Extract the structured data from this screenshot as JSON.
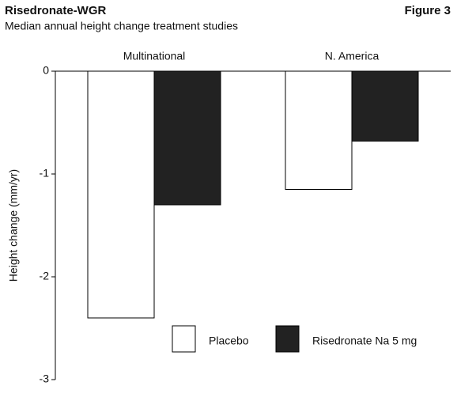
{
  "chart_data": {
    "type": "bar",
    "title": "Risedronate-WGR",
    "figure_label": "Figure 3",
    "subtitle": "Median annual height change treatment studies",
    "y_label": "Height change (mm/yr)",
    "categories": [
      "Multinational",
      "N. America"
    ],
    "series": [
      {
        "name": "Placebo",
        "color": "#ffffff",
        "values": [
          -2.4,
          -1.15
        ]
      },
      {
        "name": "Risedronate Na 5 mg",
        "color": "#222222",
        "values": [
          -1.3,
          -0.68
        ]
      }
    ],
    "ylim": [
      -3,
      0
    ],
    "yticks": [
      0,
      -1,
      -2,
      -3
    ]
  }
}
